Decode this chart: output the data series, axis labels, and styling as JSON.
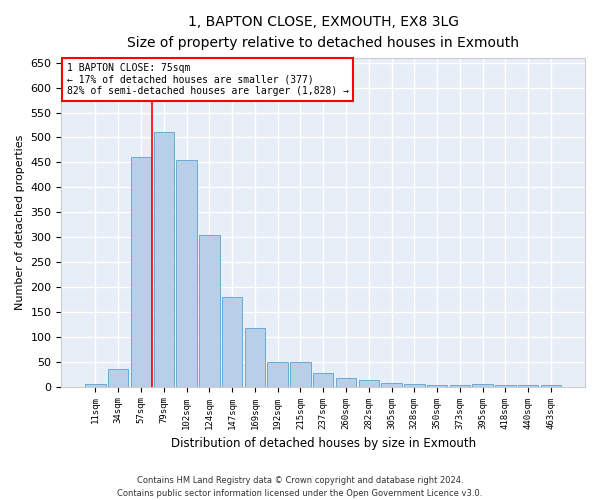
{
  "title": "1, BAPTON CLOSE, EXMOUTH, EX8 3LG",
  "subtitle": "Size of property relative to detached houses in Exmouth",
  "xlabel": "Distribution of detached houses by size in Exmouth",
  "ylabel": "Number of detached properties",
  "categories": [
    "11sqm",
    "34sqm",
    "57sqm",
    "79sqm",
    "102sqm",
    "124sqm",
    "147sqm",
    "169sqm",
    "192sqm",
    "215sqm",
    "237sqm",
    "260sqm",
    "282sqm",
    "305sqm",
    "328sqm",
    "350sqm",
    "373sqm",
    "395sqm",
    "418sqm",
    "440sqm",
    "463sqm"
  ],
  "values": [
    5,
    35,
    460,
    510,
    455,
    305,
    180,
    118,
    50,
    50,
    28,
    18,
    13,
    8,
    5,
    4,
    3,
    5,
    4,
    3,
    3
  ],
  "bar_color": "#b8cfe8",
  "bar_edge_color": "#6aaad4",
  "background_color": "#e8eef8",
  "grid_color": "#ffffff",
  "annotation_box_text": "1 BAPTON CLOSE: 75sqm\n← 17% of detached houses are smaller (377)\n82% of semi-detached houses are larger (1,828) →",
  "annotation_box_color": "red",
  "ylim": [
    0,
    660
  ],
  "yticks": [
    0,
    50,
    100,
    150,
    200,
    250,
    300,
    350,
    400,
    450,
    500,
    550,
    600,
    650
  ],
  "red_line_x": 2.5,
  "footer_line1": "Contains HM Land Registry data © Crown copyright and database right 2024.",
  "footer_line2": "Contains public sector information licensed under the Open Government Licence v3.0."
}
